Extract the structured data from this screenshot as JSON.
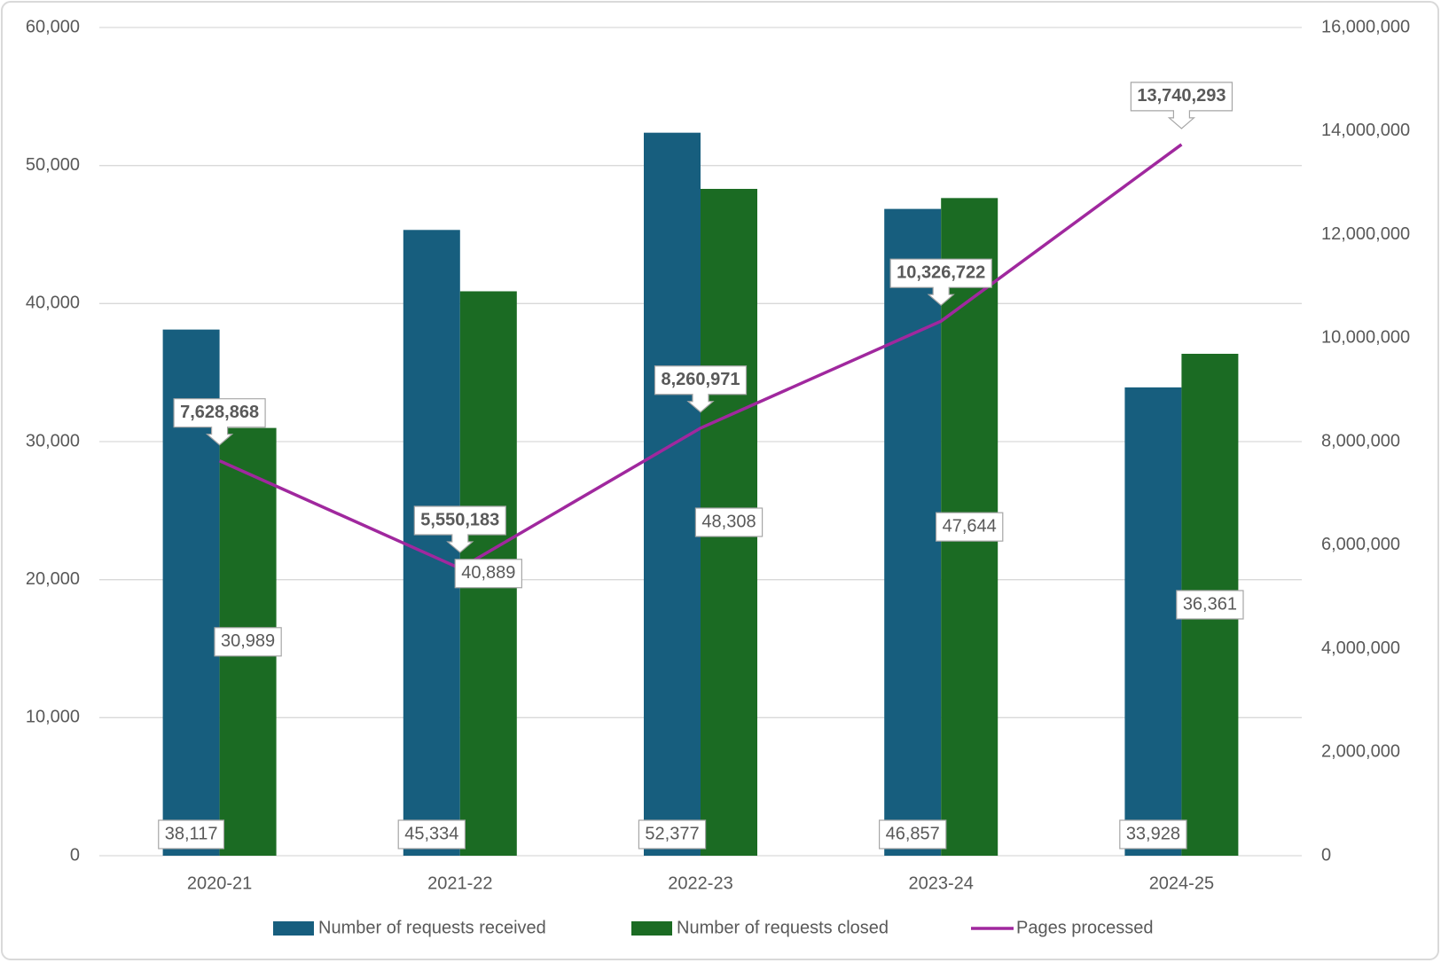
{
  "chart_data": {
    "type": "bar",
    "categories": [
      "2020-21",
      "2021-22",
      "2022-23",
      "2023-24",
      "2024-25"
    ],
    "series": [
      {
        "name": "Number of requests received",
        "color": "#175e7e",
        "type": "bar",
        "values": [
          38117,
          45334,
          52377,
          46857,
          33928
        ],
        "value_labels": [
          "38,117",
          "45,334",
          "52,377",
          "46,857",
          "33,928"
        ]
      },
      {
        "name": "Number of requests closed",
        "color": "#1b6b23",
        "type": "bar",
        "values": [
          30989,
          40889,
          48308,
          47644,
          36361
        ],
        "value_labels": [
          "30,989",
          "40,889",
          "48,308",
          "47,644",
          "36,361"
        ]
      },
      {
        "name": "Pages processed",
        "color": "#a0289e",
        "type": "line",
        "axis": "y2",
        "values": [
          7628868,
          5550183,
          8260971,
          10326722,
          13740293
        ],
        "value_labels": [
          "7,628,868",
          "5,550,183",
          "8,260,971",
          "10,326,722",
          "13,740,293"
        ]
      }
    ],
    "ylim": [
      0,
      60000
    ],
    "yticks": [
      0,
      {
        "value": 10000,
        "label": "10,000"
      },
      {
        "value": 20000,
        "label": "20,000"
      },
      {
        "value": 30000,
        "label": "30,000"
      },
      {
        "value": 40000,
        "label": "40,000"
      },
      {
        "value": 50000,
        "label": "50,000"
      },
      {
        "value": 60000,
        "label": "60,000"
      }
    ],
    "y2lim": [
      0,
      16000000
    ],
    "y2ticks": [
      0,
      {
        "value": 2000000,
        "label": "2,000,000"
      },
      {
        "value": 4000000,
        "label": "4,000,000"
      },
      {
        "value": 6000000,
        "label": "6,000,000"
      },
      {
        "value": 8000000,
        "label": "8,000,000"
      },
      {
        "value": 10000000,
        "label": "10,000,000"
      },
      {
        "value": 12000000,
        "label": "12,000,000"
      },
      {
        "value": 14000000,
        "label": "14,000,000"
      },
      {
        "value": 16000000,
        "label": "16,000,000"
      }
    ],
    "grid": true,
    "legend": "bottom"
  }
}
